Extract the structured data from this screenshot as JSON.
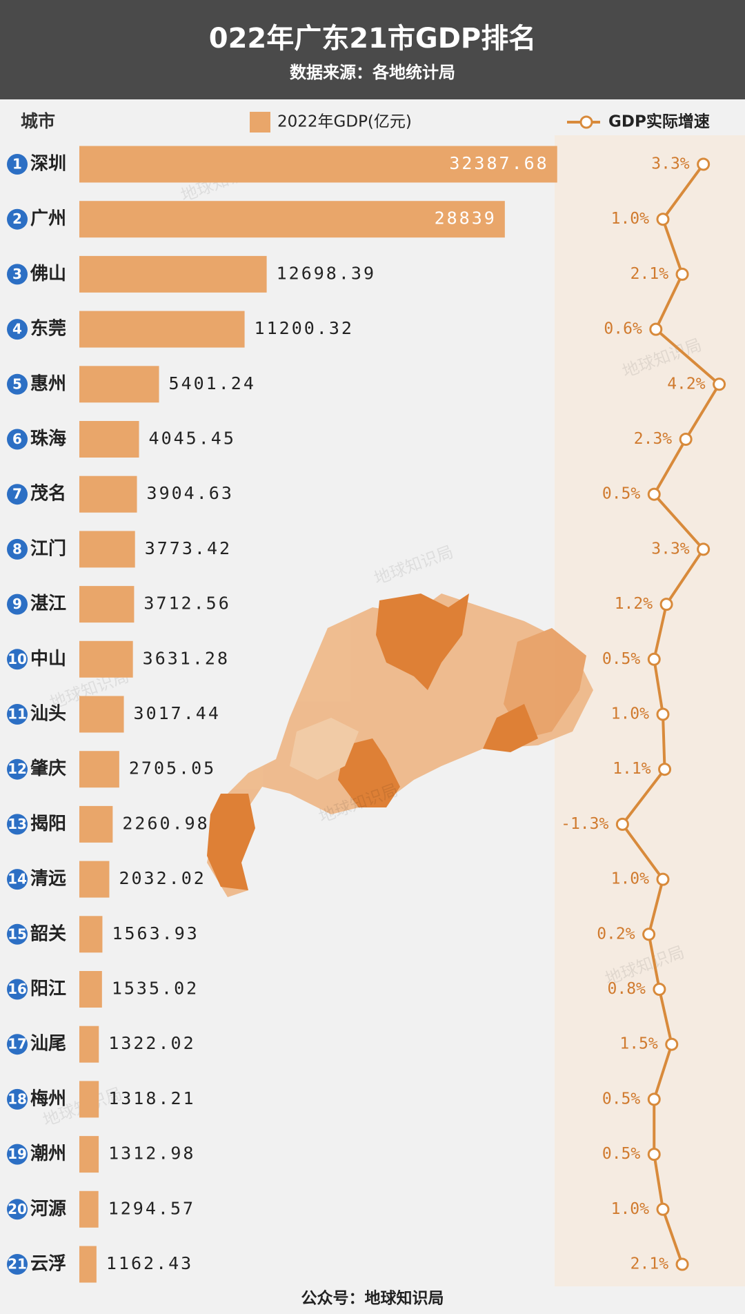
{
  "chart_data": {
    "type": "bar",
    "title": "022年广东21市GDP排名",
    "subtitle": "数据来源：各地统计局",
    "category_label": "城市",
    "footer": "公众号：地球知识局",
    "watermark": "地球知识局",
    "ranks": [
      1,
      2,
      3,
      4,
      5,
      6,
      7,
      8,
      9,
      10,
      11,
      12,
      13,
      14,
      15,
      16,
      17,
      18,
      19,
      20,
      21
    ],
    "categories": [
      "深圳",
      "广州",
      "佛山",
      "东莞",
      "惠州",
      "珠海",
      "茂名",
      "江门",
      "湛江",
      "中山",
      "汕头",
      "肇庆",
      "揭阳",
      "清远",
      "韶关",
      "阳江",
      "汕尾",
      "梅州",
      "潮州",
      "河源",
      "云浮"
    ],
    "xlim": [
      0,
      32400
    ],
    "x2lim": [
      -5,
      5
    ],
    "series": [
      {
        "name": "2022年GDP(亿元)",
        "color": "#e9a66a",
        "values": [
          32387.68,
          28839,
          12698.39,
          11200.32,
          5401.24,
          4045.45,
          3904.63,
          3773.42,
          3712.56,
          3631.28,
          3017.44,
          2705.05,
          2260.98,
          2032.02,
          1563.93,
          1535.02,
          1322.02,
          1318.21,
          1312.98,
          1294.57,
          1162.43
        ]
      },
      {
        "name": "GDP实际增速",
        "color": "#d88a3b",
        "type": "line",
        "axis": "x2",
        "values": [
          3.3,
          1.0,
          2.1,
          0.6,
          4.2,
          2.3,
          0.5,
          3.3,
          1.2,
          0.5,
          1.0,
          1.1,
          -1.3,
          1.0,
          0.2,
          0.8,
          1.5,
          0.5,
          0.5,
          1.0,
          2.1
        ],
        "value_labels": [
          "3.3%",
          "1.0%",
          "2.1%",
          "0.6%",
          "4.2%",
          "2.3%",
          "0.5%",
          "3.3%",
          "1.2%",
          "0.5%",
          "1.0%",
          "1.1%",
          "-1.3%",
          "1.0%",
          "0.2%",
          "0.8%",
          "1.5%",
          "0.5%",
          "0.5%",
          "1.0%",
          "2.1%"
        ]
      }
    ]
  }
}
